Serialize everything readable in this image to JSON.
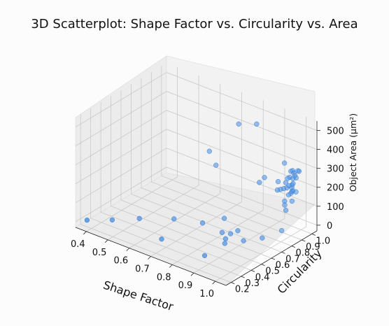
{
  "chart_data": {
    "type": "scatter",
    "title": "3D Scatterplot: Shape Factor vs. Circularity vs. Area",
    "xlabel": "Shape Factor",
    "ylabel": "Circularity",
    "zlabel": "Object Area (µm²)",
    "xlim": [
      0.35,
      1.05
    ],
    "ylim": [
      0.15,
      1.05
    ],
    "zlim": [
      -30,
      550
    ],
    "x_ticks": [
      "0.4",
      "0.5",
      "0.6",
      "0.7",
      "0.8",
      "0.9",
      "1.0"
    ],
    "y_ticks": [
      "0.2",
      "0.3",
      "0.4",
      "0.5",
      "0.6",
      "0.7",
      "0.8",
      "0.9",
      "1.0"
    ],
    "z_ticks": [
      "0",
      "100",
      "200",
      "300",
      "400",
      "500"
    ],
    "point_color": "#4a90e2",
    "grid": true,
    "series": [
      {
        "x": [
          0.38,
          0.45,
          0.52,
          0.62,
          0.68,
          0.72,
          0.76,
          0.82,
          0.85,
          0.86,
          0.87,
          0.88,
          0.96,
          0.98,
          0.88,
          0.92,
          0.62,
          0.66,
          0.78,
          0.84,
          0.9,
          0.94,
          0.9,
          0.96,
          0.97,
          0.96,
          0.97,
          0.98,
          0.99,
          0.99,
          1.0,
          1.0,
          0.98,
          0.97,
          0.99,
          1.0,
          0.99,
          0.98,
          0.97,
          0.99,
          1.0,
          0.98,
          0.99,
          1.0,
          0.99,
          0.98,
          0.97,
          0.99,
          1.0,
          0.97,
          0.98,
          0.99
        ],
        "y": [
          0.2,
          0.3,
          0.42,
          0.55,
          0.3,
          0.62,
          0.75,
          0.6,
          0.62,
          0.55,
          0.65,
          0.3,
          0.7,
          0.85,
          0.5,
          0.6,
          0.9,
          0.88,
          0.85,
          0.9,
          0.85,
          0.9,
          0.8,
          0.92,
          0.95,
          0.85,
          0.86,
          0.87,
          0.88,
          0.9,
          0.91,
          0.92,
          0.89,
          0.93,
          0.94,
          0.95,
          0.96,
          0.97,
          0.98,
          0.99,
          0.98,
          0.95,
          0.93,
          0.9,
          0.97,
          0.96,
          0.94,
          0.92,
          0.91,
          0.9,
          0.88,
          0.87
        ],
        "z": [
          5,
          5,
          5,
          5,
          5,
          5,
          5,
          5,
          5,
          5,
          20,
          5,
          5,
          5,
          5,
          5,
          250,
          200,
          480,
          490,
          250,
          230,
          240,
          330,
          250,
          210,
          215,
          220,
          225,
          230,
          235,
          240,
          245,
          250,
          255,
          260,
          265,
          270,
          275,
          280,
          285,
          200,
          190,
          195,
          175,
          180,
          160,
          300,
          150,
          140,
          130,
          110
        ]
      }
    ]
  }
}
